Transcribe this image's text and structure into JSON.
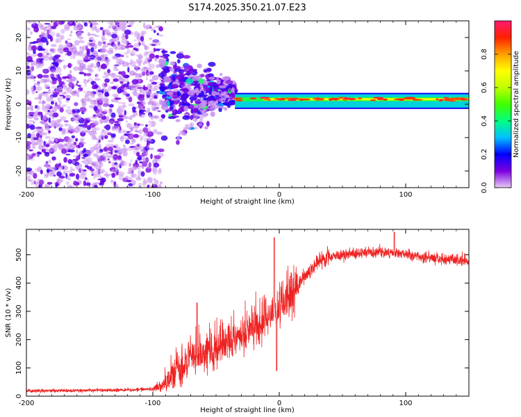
{
  "title": "S174.2025.350.21.07.E23",
  "chart_data": [
    {
      "type": "heatmap",
      "xlabel": "Height of straight line (km)",
      "ylabel": "Frequency (Hz)",
      "xlim": [
        -200,
        150
      ],
      "ylim": [
        -25,
        25
      ],
      "xticks": [
        -200,
        -100,
        0,
        100
      ],
      "yticks": [
        20,
        10,
        0,
        -10,
        -20
      ],
      "colorbar": {
        "label": "Normalized spectral amplitude",
        "range": [
          0,
          1
        ],
        "ticks": [
          0.0,
          0.2,
          0.4,
          0.6,
          0.8
        ],
        "colors": [
          "#e8ccf5",
          "#7a00e0",
          "#0000ff",
          "#00c0ff",
          "#00ff80",
          "#40ff00",
          "#c0ff00",
          "#ffff00",
          "#ffa000",
          "#ff2000",
          "#ff1a70"
        ]
      },
      "features": {
        "noise_region_x": [
          -200,
          -93
        ],
        "transition_x": [
          -93,
          -35
        ],
        "tone_x": [
          -35,
          150
        ],
        "tone_frequency_hz": 1.5,
        "tone_bandwidth_hz": [
          -1,
          3
        ]
      }
    },
    {
      "type": "line",
      "xlabel": "Height of straight line (km)",
      "ylabel": "SNR (10 * v/v)",
      "xlim": [
        -200,
        150
      ],
      "ylim": [
        0,
        590
      ],
      "xticks": [
        -200,
        -100,
        0,
        100
      ],
      "yticks": [
        0,
        100,
        200,
        300,
        400,
        500
      ],
      "color": "#ee2222",
      "profile_x": [
        -200,
        -160,
        -120,
        -100,
        -90,
        -80,
        -70,
        -60,
        -50,
        -40,
        -30,
        -20,
        -10,
        0,
        10,
        20,
        30,
        40,
        60,
        80,
        100,
        120,
        150
      ],
      "profile_y": [
        18,
        20,
        22,
        25,
        40,
        95,
        130,
        150,
        160,
        185,
        215,
        240,
        270,
        305,
        360,
        420,
        470,
        495,
        505,
        510,
        500,
        490,
        480
      ]
    }
  ]
}
